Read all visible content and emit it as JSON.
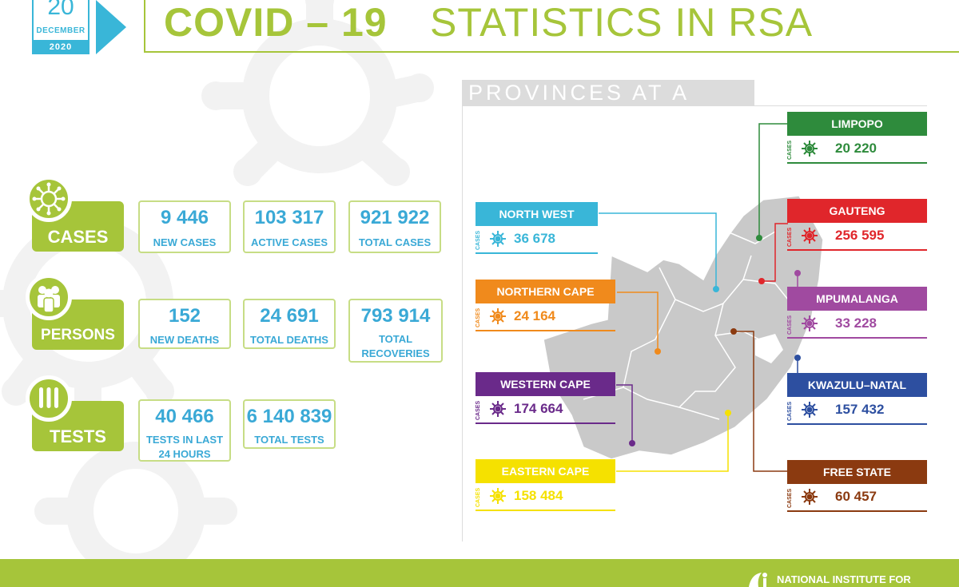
{
  "date": {
    "day": "20",
    "month": "DECEMBER",
    "year": "2020"
  },
  "title": {
    "bold": "COVID – 19",
    "light": "STATISTICS IN RSA"
  },
  "categories": [
    {
      "label": "CASES",
      "icon": "virus-icon"
    },
    {
      "label": "PERSONS",
      "icon": "people-icon"
    },
    {
      "label": "TESTS",
      "icon": "test-tubes-icon"
    }
  ],
  "stats": {
    "cases": [
      {
        "value": "9 446",
        "label": "NEW CASES"
      },
      {
        "value": "103 317",
        "label": "ACTIVE CASES"
      },
      {
        "value": "921 922",
        "label": "TOTAL CASES"
      }
    ],
    "persons": [
      {
        "value": "152",
        "label": "NEW DEATHS"
      },
      {
        "value": "24 691",
        "label": "TOTAL DEATHS"
      },
      {
        "value": "793 914",
        "label_line1": "TOTAL",
        "label_line2": "RECOVERIES"
      }
    ],
    "tests": [
      {
        "value": "40 466",
        "label_line1": "TESTS IN LAST",
        "label_line2": "24 HOURS"
      },
      {
        "value": "6 140 839",
        "label": "TOTAL TESTS"
      }
    ]
  },
  "provinces_header": "PROVINCES AT A GLANCE",
  "cases_label": "CASES",
  "provinces": [
    {
      "name": "LIMPOPO",
      "cases": "20 220",
      "color": "#2e8b3c"
    },
    {
      "name": "GAUTENG",
      "cases": "256 595",
      "color": "#e0262b"
    },
    {
      "name": "MPUMALANGA",
      "cases": "33 228",
      "color": "#a04aa0"
    },
    {
      "name": "KWAZULU–NATAL",
      "cases": "157 432",
      "color": "#2d4fa0"
    },
    {
      "name": "FREE STATE",
      "cases": "60 457",
      "color": "#8b3a10"
    },
    {
      "name": "NORTH WEST",
      "cases": "36 678",
      "color": "#39b6d8"
    },
    {
      "name": "NORTHERN CAPE",
      "cases": "24 164",
      "color": "#f08a1c"
    },
    {
      "name": "WESTERN CAPE",
      "cases": "174 664",
      "color": "#6a2a8a"
    },
    {
      "name": "EASTERN CAPE",
      "cases": "158 484",
      "color": "#f5e100"
    }
  ],
  "footer": {
    "org": "NATIONAL INSTITUTE FOR"
  },
  "colors": {
    "green": "#a6c53a",
    "blue": "#39b6d8",
    "map": "#c9c9c9"
  }
}
